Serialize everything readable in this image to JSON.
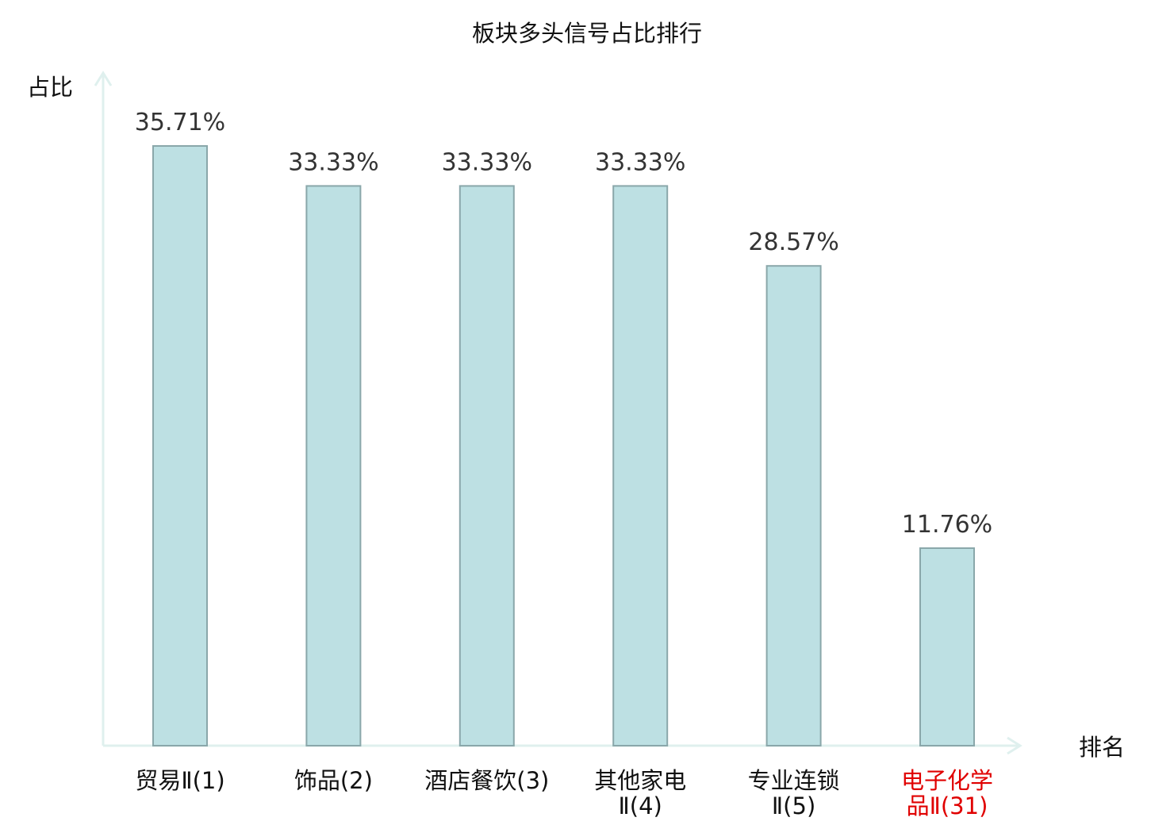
{
  "chart_data": {
    "type": "bar",
    "title": "板块多头信号占比排行",
    "ylabel": "占比",
    "xlabel": "排名",
    "categories": [
      [
        "贸易Ⅱ(1)"
      ],
      [
        "饰品(2)"
      ],
      [
        "酒店餐饮(3)"
      ],
      [
        "其他家电",
        "Ⅱ(4)"
      ],
      [
        "专业连锁",
        "Ⅱ(5)"
      ],
      [
        "电子化学",
        "品Ⅱ(31)"
      ]
    ],
    "values": [
      35.71,
      33.33,
      33.33,
      33.33,
      28.57,
      11.76
    ],
    "value_labels": [
      "35.71%",
      "33.33%",
      "33.33%",
      "33.33%",
      "28.57%",
      "11.76%"
    ],
    "highlight_index": 5,
    "ylim": [
      0,
      38
    ],
    "grid": false,
    "colors": {
      "bar_fill": "#bde0e3",
      "bar_stroke": "#8aa7aa",
      "axis": "#dff0ee",
      "text": "#333333",
      "label": "#111111",
      "highlight": "#e00000"
    }
  }
}
